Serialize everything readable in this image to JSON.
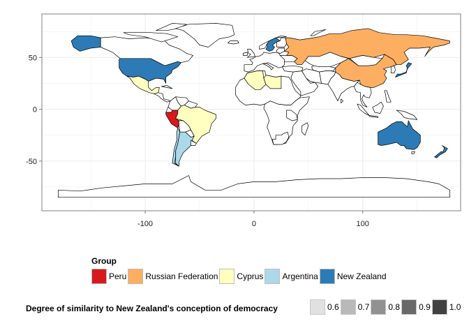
{
  "chart_data": {
    "type": "choropleth-map",
    "x_ticks": [
      -100,
      0,
      100
    ],
    "y_ticks": [
      50,
      0,
      -50
    ],
    "xlim": [
      -195,
      190
    ],
    "ylim": [
      -98,
      92
    ],
    "grid": true,
    "legend_placement": "bottom",
    "groups": [
      {
        "name": "Peru",
        "color": "#d7191c",
        "countries": [
          "Peru"
        ]
      },
      {
        "name": "Russian Federation",
        "color": "#fdae61",
        "countries": [
          "Russia",
          "China"
        ]
      },
      {
        "name": "Cyprus",
        "color": "#ffffbf",
        "countries": [
          "Mexico",
          "Brazil",
          "Algeria",
          "Libya"
        ]
      },
      {
        "name": "Argentina",
        "color": "#abd9e9",
        "countries": [
          "Argentina",
          "Chile"
        ]
      },
      {
        "name": "New Zealand",
        "color": "#2c7bb6",
        "countries": [
          "United States",
          "Australia",
          "New Zealand",
          "Japan",
          "Sweden"
        ]
      }
    ],
    "alpha_legend": {
      "title": "Degree of similarity to New Zealand's conception of democracy",
      "values": [
        "0.6",
        "0.7",
        "0.8",
        "0.9",
        "1.0"
      ]
    }
  },
  "legend": {
    "group_title": "Group"
  },
  "colors": {
    "panel_border": "#7f7f7f",
    "grid": "#ebebeb",
    "land_default": "#ffffff",
    "outline": "#000000"
  }
}
